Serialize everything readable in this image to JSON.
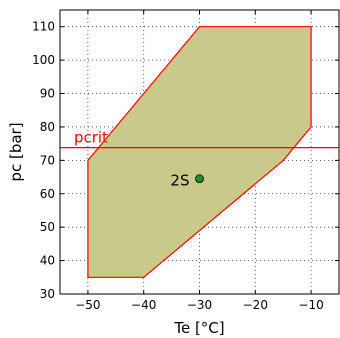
{
  "chart_data": {
    "type": "area",
    "xlabel": "Te [°C]",
    "ylabel": "pc [bar]",
    "xlim": [
      -55,
      -5
    ],
    "ylim": [
      30,
      115
    ],
    "xticks": [
      -50,
      -40,
      -30,
      -20,
      -10
    ],
    "xtick_labels": [
      "−50",
      "−40",
      "−30",
      "−20",
      "−10"
    ],
    "yticks": [
      30,
      40,
      50,
      60,
      70,
      80,
      90,
      100,
      110
    ],
    "ytick_labels": [
      "30",
      "40",
      "50",
      "60",
      "70",
      "80",
      "90",
      "100",
      "110"
    ],
    "grid": true,
    "envelope": {
      "x": [
        -50,
        -30,
        -10,
        -10,
        -15,
        -40,
        -50,
        -50
      ],
      "y": [
        70,
        110,
        110,
        80,
        70,
        35,
        35,
        70
      ],
      "fill_color": "#c9c98a",
      "edge_color": "#ff0000"
    },
    "reference_line": {
      "label": "pcrit",
      "y": 73.8,
      "color": "#ff0000"
    },
    "points": [
      {
        "label": "2S",
        "x": -30,
        "y": 64.5,
        "color": "#1f8f1f"
      }
    ]
  }
}
